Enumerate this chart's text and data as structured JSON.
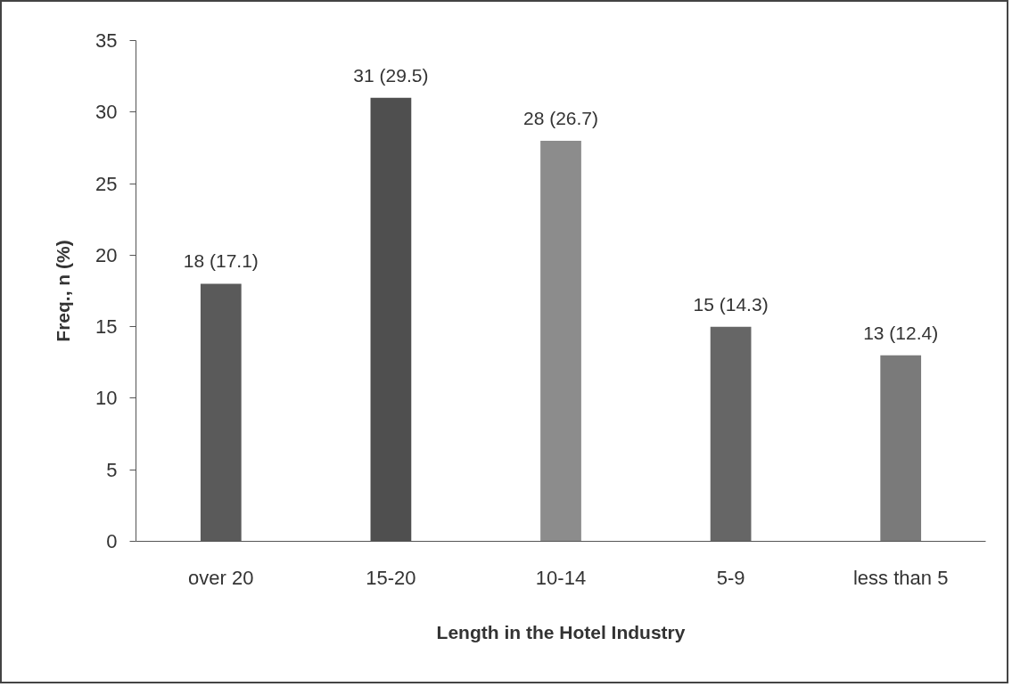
{
  "chart_data": {
    "type": "bar",
    "xlabel": "Length in the Hotel Industry",
    "ylabel": "Freq., n (%)",
    "categories": [
      "over 20",
      "15-20",
      "10-14",
      "5-9",
      "less than 5"
    ],
    "values": [
      18,
      31,
      28,
      15,
      13
    ],
    "colors": [
      "#5a5a5a",
      "#4f4f4f",
      "#8c8c8c",
      "#666666",
      "#7a7a7a"
    ],
    "value_labels": [
      "18 (17.1)",
      "31 (29.5)",
      "28 (26.7)",
      "15 (14.3)",
      "13 (12.4)"
    ],
    "ylim": [
      0,
      35
    ],
    "yticks": [
      0,
      5,
      10,
      15,
      20,
      25,
      30,
      35
    ],
    "grid": false
  }
}
